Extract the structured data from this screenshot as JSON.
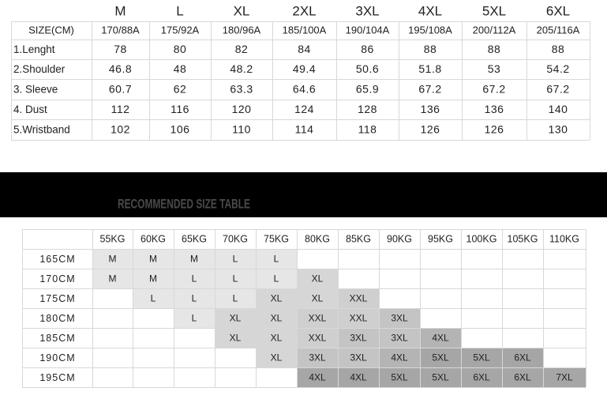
{
  "size_chart": {
    "sizes": [
      "M",
      "L",
      "XL",
      "2XL",
      "3XL",
      "4XL",
      "5XL",
      "6XL"
    ],
    "code_label": "SIZE(CM)",
    "codes": [
      "170/88A",
      "175/92A",
      "180/96A",
      "185/100A",
      "190/104A",
      "195/108A",
      "200/112A",
      "205/116A"
    ],
    "rows": [
      {
        "label": "1.Lenght",
        "values": [
          78,
          80,
          82,
          84,
          86,
          88,
          88,
          88
        ]
      },
      {
        "label": "2.Shoulder",
        "values": [
          46.8,
          48,
          48.2,
          49.4,
          50.6,
          51.8,
          53,
          54.2
        ]
      },
      {
        "label": "3. Sleeve",
        "values": [
          60.7,
          62,
          63.3,
          64.6,
          65.9,
          67.2,
          67.2,
          67.2
        ]
      },
      {
        "label": "4. Dust",
        "values": [
          112,
          116,
          120,
          124,
          128,
          136,
          136,
          140
        ]
      },
      {
        "label": "5.Wristband",
        "values": [
          102,
          106,
          110,
          114,
          118,
          126,
          126,
          130
        ]
      }
    ]
  },
  "banner": {
    "title": "RECOMMENDED SIZE TABLE"
  },
  "recommend": {
    "weights": [
      "55KG",
      "60KG",
      "65KG",
      "70KG",
      "75KG",
      "80KG",
      "85KG",
      "90KG",
      "95KG",
      "100KG",
      "105KG",
      "110KG"
    ],
    "heights": [
      "165CM",
      "170CM",
      "175CM",
      "180CM",
      "185CM",
      "190CM",
      "195CM"
    ],
    "cells": [
      [
        "M",
        "M",
        "M",
        "L",
        "L",
        null,
        null,
        null,
        null,
        null,
        null,
        null
      ],
      [
        "M",
        "M",
        "L",
        "L",
        "L",
        "XL",
        null,
        null,
        null,
        null,
        null,
        null
      ],
      [
        null,
        "L",
        "L",
        "L",
        "XL",
        "XL",
        "XXL",
        null,
        null,
        null,
        null,
        null
      ],
      [
        null,
        null,
        "L",
        "XL",
        "XL",
        "XXL",
        "XXL",
        "3XL",
        null,
        null,
        null,
        null
      ],
      [
        null,
        null,
        null,
        "XL",
        "XL",
        "XXL",
        "3XL",
        "3XL",
        "4XL",
        null,
        null,
        null
      ],
      [
        null,
        null,
        null,
        null,
        "XL",
        "3XL",
        "3XL",
        "4XL",
        "5XL",
        "5XL",
        "6XL",
        null
      ],
      [
        null,
        null,
        null,
        null,
        null,
        "4XL",
        "4XL",
        "5XL",
        "5XL",
        "6XL",
        "6XL",
        "7XL"
      ]
    ]
  }
}
